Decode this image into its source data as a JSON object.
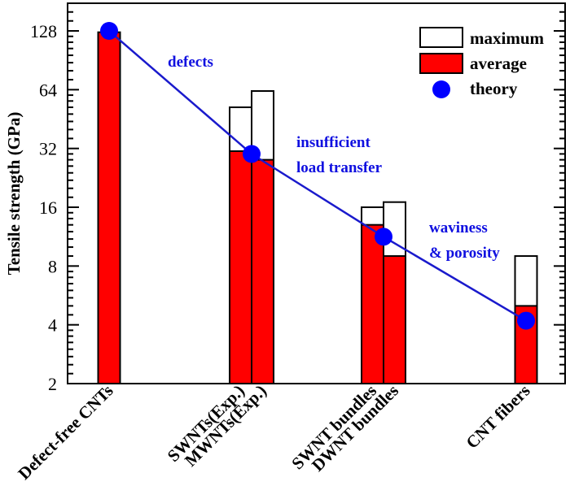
{
  "chart_data": {
    "type": "bar",
    "title": "",
    "xlabel": "",
    "ylabel": "Tensile strength (GPa)",
    "yscale": "log2",
    "ylim": [
      2,
      150
    ],
    "yticks": [
      2,
      4,
      8,
      16,
      32,
      64,
      128
    ],
    "grid": false,
    "legend_position": "top-right",
    "legend": [
      {
        "key": "maximum",
        "label": "maximum",
        "style": "white-bar"
      },
      {
        "key": "average",
        "label": "average",
        "style": "red-bar"
      },
      {
        "key": "theory",
        "label": "theory",
        "style": "blue-circle"
      }
    ],
    "groups": [
      {
        "bars": [
          {
            "category": "Defect-free CNTs",
            "average": 126,
            "maximum": null
          }
        ],
        "theory": 128
      },
      {
        "bars": [
          {
            "category": "SWNTs(Exp.)",
            "average": 31,
            "maximum": 52
          },
          {
            "category": "MWNTs(Exp.)",
            "average": 28,
            "maximum": 63
          }
        ],
        "theory": 30
      },
      {
        "bars": [
          {
            "category": "SWNT bundles",
            "average": 13,
            "maximum": 16
          },
          {
            "category": "DWNT bundles",
            "average": 9,
            "maximum": 17
          }
        ],
        "theory": 11.3
      },
      {
        "bars": [
          {
            "category": "CNT fibers",
            "average": 5,
            "maximum": 9
          }
        ],
        "theory": 4.2
      }
    ],
    "annotations": [
      {
        "lines": [
          "defects"
        ]
      },
      {
        "lines": [
          "insufficient",
          "load transfer"
        ]
      },
      {
        "lines": [
          "waviness",
          "& porosity"
        ]
      }
    ],
    "colors": {
      "average": "#ff0000",
      "maximum": "#ffffff",
      "theory": "#0000ff",
      "theory_line": "#1a1acc",
      "annotation": "#1010e0"
    }
  }
}
